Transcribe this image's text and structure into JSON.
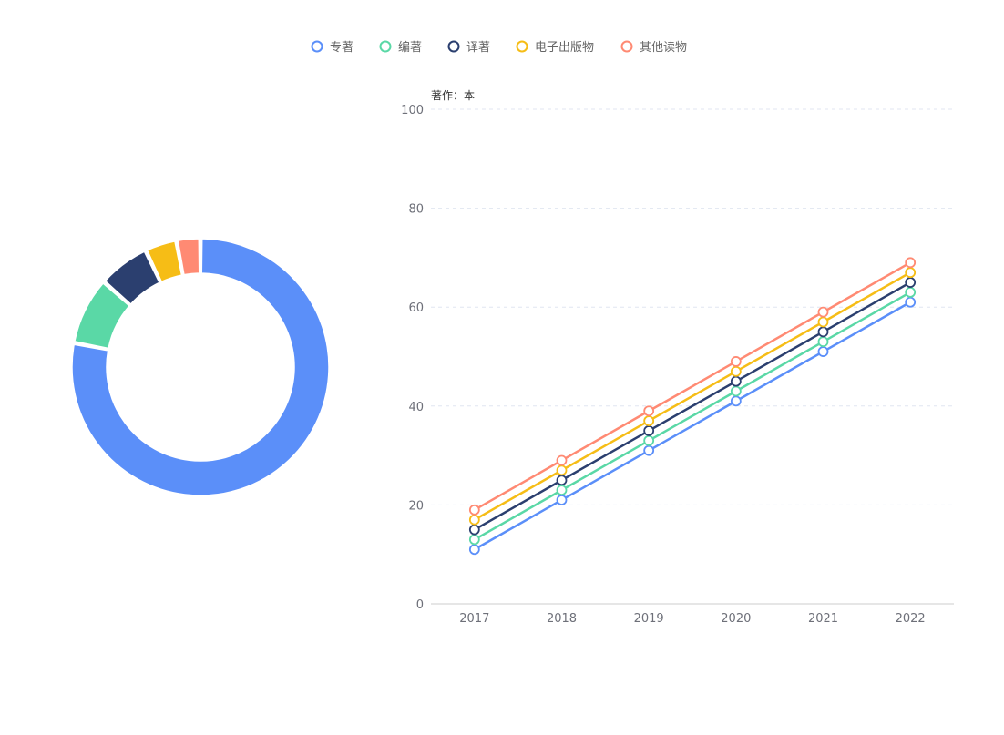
{
  "legend": {
    "items": [
      {
        "name": "专著",
        "color": "#5b8ff9"
      },
      {
        "name": "编著",
        "color": "#5ad8a6"
      },
      {
        "name": "译著",
        "color": "#2b3f6f"
      },
      {
        "name": "电子出版物",
        "color": "#f6bd16"
      },
      {
        "name": "其他读物",
        "color": "#ff8a73"
      }
    ]
  },
  "chart_data": [
    {
      "type": "pie",
      "style": "donut",
      "slices": [
        {
          "name": "专著",
          "value": 78,
          "color": "#5b8ff9"
        },
        {
          "name": "编著",
          "value": 8.5,
          "color": "#5ad8a6"
        },
        {
          "name": "译著",
          "value": 6.5,
          "color": "#2b3f6f"
        },
        {
          "name": "电子出版物",
          "value": 4,
          "color": "#f6bd16"
        },
        {
          "name": "其他读物",
          "value": 3,
          "color": "#ff8a73"
        }
      ]
    },
    {
      "type": "line",
      "ylabel": "著作：本",
      "categories": [
        "2017",
        "2018",
        "2019",
        "2020",
        "2021",
        "2022"
      ],
      "ylim": [
        0,
        100
      ],
      "yticks": [
        0,
        20,
        40,
        60,
        80,
        100
      ],
      "grid": true,
      "series": [
        {
          "name": "专著",
          "color": "#5b8ff9",
          "values": [
            11,
            21,
            31,
            41,
            51,
            61
          ]
        },
        {
          "name": "编著",
          "color": "#5ad8a6",
          "values": [
            13,
            23,
            33,
            43,
            53,
            63
          ]
        },
        {
          "name": "译著",
          "color": "#2b3f6f",
          "values": [
            15,
            25,
            35,
            45,
            55,
            65
          ]
        },
        {
          "name": "电子出版物",
          "color": "#f6bd16",
          "values": [
            17,
            27,
            37,
            47,
            57,
            67
          ]
        },
        {
          "name": "其他读物",
          "color": "#ff8a73",
          "values": [
            19,
            29,
            39,
            49,
            59,
            69
          ]
        }
      ]
    }
  ]
}
